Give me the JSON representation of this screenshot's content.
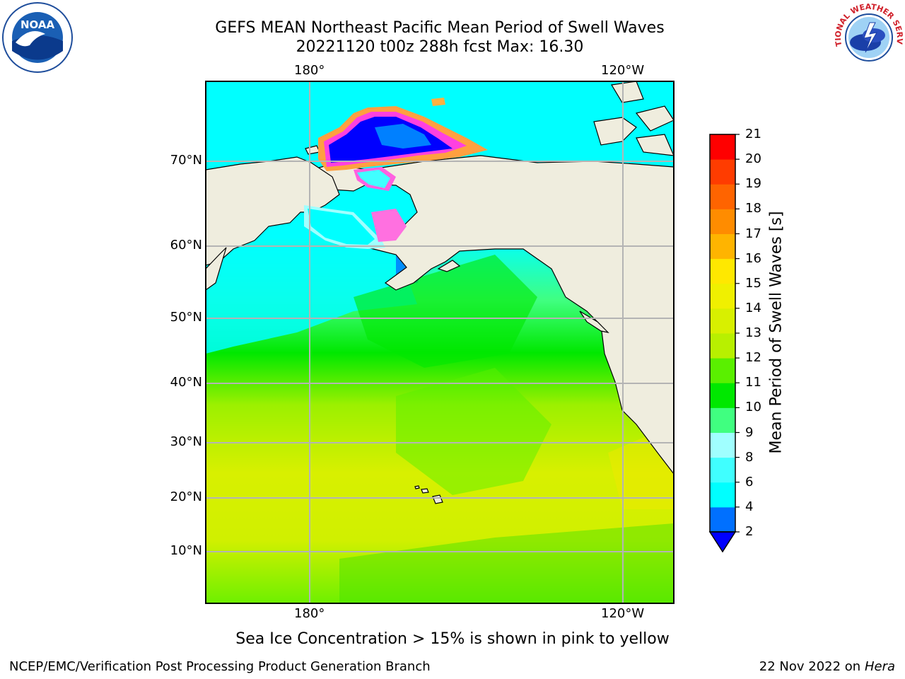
{
  "title": {
    "line1": "GEFS MEAN Northeast Pacific Mean Period of Swell Waves",
    "line2": "20221120 t00z 288h fcst   Max: 16.30"
  },
  "map": {
    "lon_labels": [
      "180°",
      "120°W"
    ],
    "lat_labels": [
      "70°N",
      "60°N",
      "50°N",
      "40°N",
      "30°N",
      "20°N",
      "10°N"
    ],
    "land_color": "#efedde",
    "ocean_note": "Sea Ice Concentration > 15% is shown in pink to yellow"
  },
  "colorbar": {
    "title": "Mean Period of Swell Waves [s]",
    "ticks": [
      "2",
      "4",
      "6",
      "8",
      "9",
      "10",
      "11",
      "12",
      "13",
      "14",
      "15",
      "16",
      "17",
      "18",
      "19",
      "20",
      "21"
    ],
    "colors": [
      "#0070ff",
      "#00ffff",
      "#40ffff",
      "#a0ffff",
      "#40ff80",
      "#00e800",
      "#5af000",
      "#b8f000",
      "#d8f000",
      "#f0f000",
      "#ffe800",
      "#ffb400",
      "#ff8c00",
      "#ff6400",
      "#ff3c00",
      "#ff0000"
    ],
    "extend_color": "#0000ff"
  },
  "logos": {
    "left": "NOAA",
    "right": "NATIONAL WEATHER SERVICE"
  },
  "footer": {
    "left": "NCEP/EMC/Verification Post Processing Product Generation Branch",
    "right_date": "22 Nov 2022 on",
    "right_host": "Hera"
  }
}
